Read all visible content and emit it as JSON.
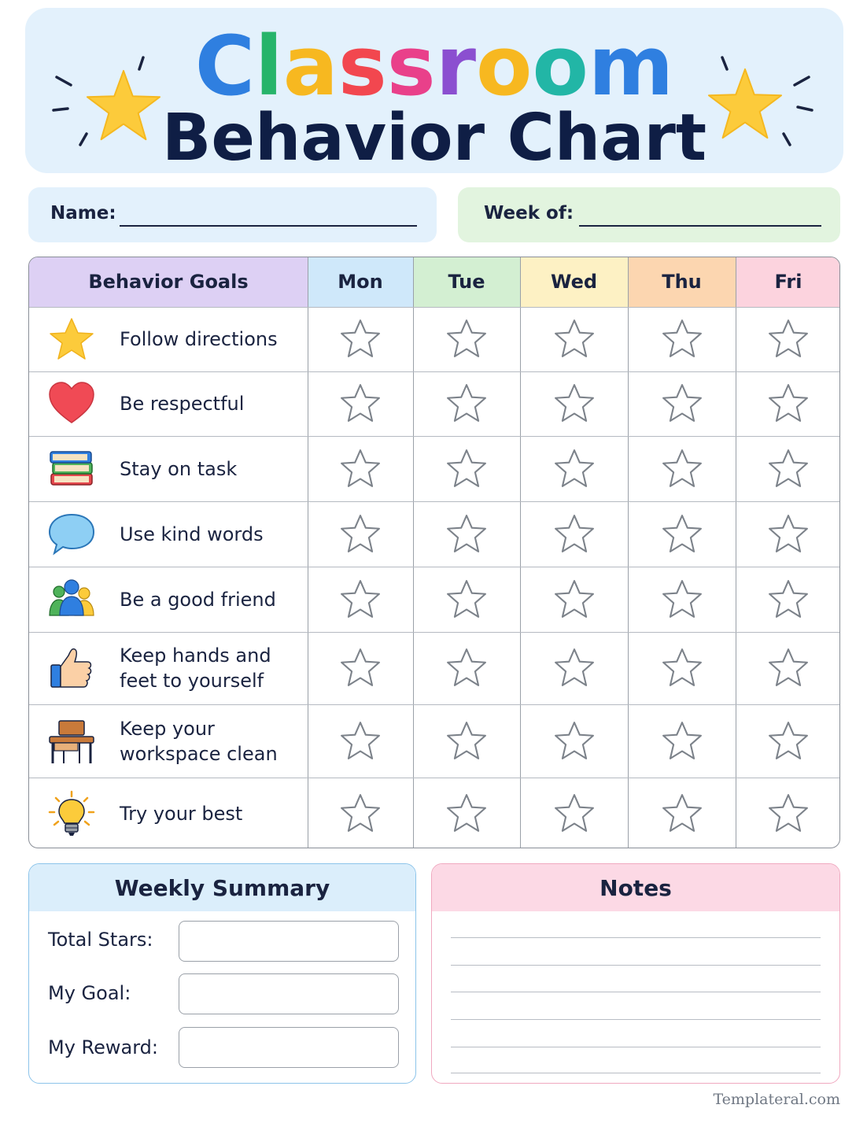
{
  "header": {
    "title_letters": [
      {
        "ch": "C",
        "color": "#2f7fe0"
      },
      {
        "ch": "l",
        "color": "#27b46a"
      },
      {
        "ch": "a",
        "color": "#f7b820"
      },
      {
        "ch": "s",
        "color": "#f2474f"
      },
      {
        "ch": "s",
        "color": "#e9408a"
      },
      {
        "ch": "r",
        "color": "#8b4fd0"
      },
      {
        "ch": "o",
        "color": "#f7b820"
      },
      {
        "ch": "o",
        "color": "#22b6a6"
      },
      {
        "ch": "m",
        "color": "#2f7fe0"
      }
    ],
    "subtitle": "Behavior Chart",
    "star_color": "#fccb3b"
  },
  "fields": {
    "name_label": "Name:",
    "week_label": "Week of:"
  },
  "table": {
    "goals_header": "Behavior Goals",
    "days": [
      {
        "label": "Mon",
        "color": "#cfe8fa"
      },
      {
        "label": "Tue",
        "color": "#d3efd2"
      },
      {
        "label": "Wed",
        "color": "#fdf1c4"
      },
      {
        "label": "Thu",
        "color": "#fcd6b0"
      },
      {
        "label": "Fri",
        "color": "#fcd3de"
      }
    ],
    "goals_header_color": "#ddd0f4",
    "goals": [
      {
        "lines": [
          "Follow directions"
        ],
        "icon": "star-icon"
      },
      {
        "lines": [
          "Be respectful"
        ],
        "icon": "heart-icon"
      },
      {
        "lines": [
          "Stay on task"
        ],
        "icon": "books-icon"
      },
      {
        "lines": [
          "Use kind words"
        ],
        "icon": "speech-bubble-icon"
      },
      {
        "lines": [
          "Be a good friend"
        ],
        "icon": "friends-icon"
      },
      {
        "lines": [
          "Keep hands and",
          "feet to yourself"
        ],
        "icon": "thumbs-up-icon"
      },
      {
        "lines": [
          "Keep your",
          "workspace clean"
        ],
        "icon": "desk-icon"
      },
      {
        "lines": [
          "Try your best"
        ],
        "icon": "lightbulb-icon"
      }
    ]
  },
  "summary": {
    "title": "Weekly Summary",
    "fields": [
      "Total Stars:",
      "My Goal:",
      "My Reward:"
    ]
  },
  "notes": {
    "title": "Notes"
  },
  "footer": "Templateral.com"
}
